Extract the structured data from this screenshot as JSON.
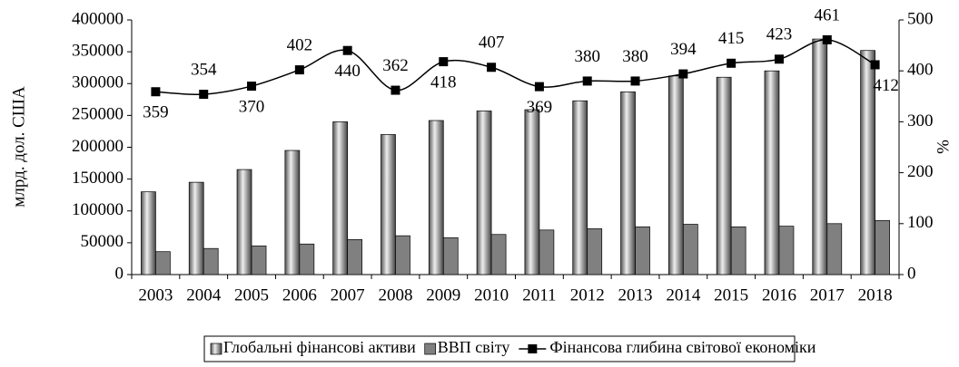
{
  "chart_data": {
    "type": "bar_line",
    "y_label": "млрд. дол. США",
    "y2_label": "%",
    "categories": [
      "2003",
      "2004",
      "2005",
      "2006",
      "2007",
      "2008",
      "2009",
      "2010",
      "2011",
      "2012",
      "2013",
      "2014",
      "2015",
      "2016",
      "2017",
      "2018"
    ],
    "series": [
      {
        "name": "Глобальні фінансові активи",
        "type": "bar",
        "color": "#9a9a9a",
        "values": [
          130000,
          145000,
          165000,
          195000,
          240000,
          220000,
          242000,
          257000,
          259000,
          273000,
          287000,
          312000,
          310000,
          320000,
          370000,
          352000
        ]
      },
      {
        "name": "ВВП світу",
        "type": "bar",
        "color": "#808080",
        "values": [
          36000,
          41000,
          45000,
          48000,
          55000,
          61000,
          58000,
          63000,
          70000,
          72000,
          75000,
          79000,
          75000,
          76000,
          80000,
          85000
        ]
      },
      {
        "name": "Фінансова глибина світової економіки",
        "type": "line",
        "axis": "y2",
        "color": "#000000",
        "values": [
          359,
          354,
          370,
          402,
          440,
          362,
          418,
          407,
          369,
          380,
          380,
          394,
          415,
          423,
          461,
          412
        ]
      }
    ],
    "ylim": [
      0,
      400000
    ],
    "yticks": [
      0,
      50000,
      100000,
      150000,
      200000,
      250000,
      300000,
      350000,
      400000
    ],
    "y2lim": [
      0,
      500
    ],
    "y2ticks": [
      0,
      100,
      200,
      300,
      400,
      500
    ],
    "legend": "bottom"
  }
}
